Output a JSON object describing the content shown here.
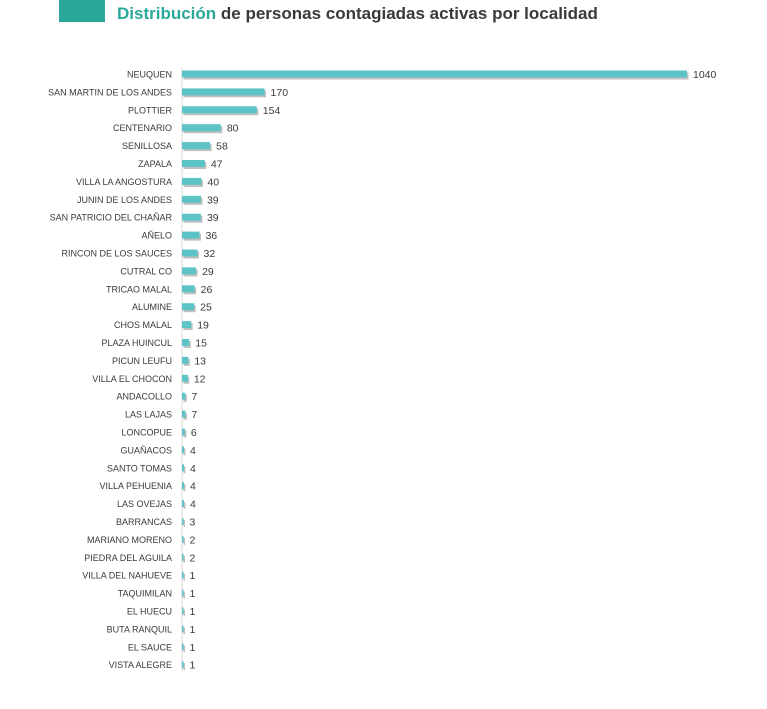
{
  "header": {
    "title_highlight": "Distribución",
    "title_rest": " de personas contagiadas activas por localidad"
  },
  "colors": {
    "accent": "#2aa89a",
    "bar": "#5cc3c7",
    "bar_shadow": "#8a8a8a",
    "text": "#3a3a3a"
  },
  "chart_data": {
    "type": "bar",
    "orientation": "horizontal",
    "title": "Distribución de personas contagiadas activas por localidad",
    "xlabel": "",
    "ylabel": "",
    "xlim": [
      0,
      1040
    ],
    "grid": false,
    "categories": [
      "NEUQUEN",
      "SAN MARTIN DE LOS ANDES",
      "PLOTTIER",
      "CENTENARIO",
      "SENILLOSA",
      "ZAPALA",
      "VILLA LA ANGOSTURA",
      "JUNIN DE LOS ANDES",
      "SAN PATRICIO DEL CHAÑAR",
      "AÑELO",
      "RINCON DE LOS SAUCES",
      "CUTRAL CO",
      "TRICAO MALAL",
      "ALUMINE",
      "CHOS MALAL",
      "PLAZA HUINCUL",
      "PICUN LEUFU",
      "VILLA EL CHOCON",
      "ANDACOLLO",
      "LAS LAJAS",
      "LONCOPUE",
      "GUAÑACOS",
      "SANTO TOMAS",
      "VILLA PEHUENIA",
      "LAS OVEJAS",
      "BARRANCAS",
      "MARIANO MORENO",
      "PIEDRA DEL AGUILA",
      "VILLA DEL NAHUEVE",
      "TAQUIMILAN",
      "EL HUECU",
      "BUTA RANQUIL",
      "EL SAUCE",
      "VISTA ALEGRE"
    ],
    "values": [
      1040,
      170,
      154,
      80,
      58,
      47,
      40,
      39,
      39,
      36,
      32,
      29,
      26,
      25,
      19,
      15,
      13,
      12,
      7,
      7,
      6,
      4,
      4,
      4,
      4,
      3,
      2,
      2,
      1,
      1,
      1,
      1,
      1,
      1
    ]
  }
}
